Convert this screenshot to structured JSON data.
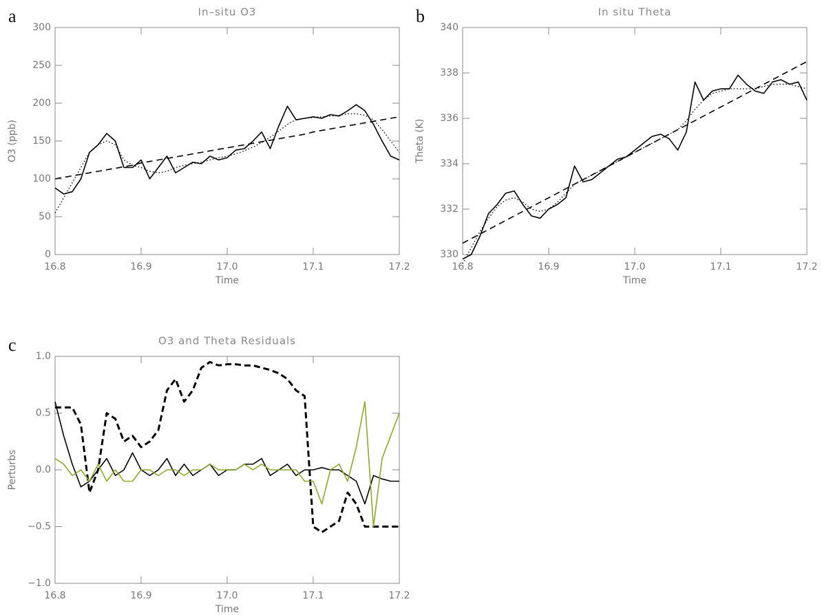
{
  "chart_data": [
    {
      "type": "line",
      "label": "a",
      "title": "In–situ O3",
      "xlabel": "Time",
      "ylabel": "O3 (ppb)",
      "x": [
        16.8,
        16.81,
        16.82,
        16.83,
        16.84,
        16.85,
        16.86,
        16.87,
        16.88,
        16.89,
        16.9,
        16.91,
        16.92,
        16.93,
        16.94,
        16.95,
        16.96,
        16.97,
        16.98,
        16.99,
        17.0,
        17.01,
        17.02,
        17.03,
        17.04,
        17.05,
        17.06,
        17.07,
        17.08,
        17.09,
        17.1,
        17.11,
        17.12,
        17.13,
        17.14,
        17.15,
        17.16,
        17.17,
        17.18,
        17.19,
        17.2
      ],
      "xlim": [
        16.8,
        17.2
      ],
      "xticks": [
        16.8,
        16.9,
        {
          "value": 17,
          "label": "17.0"
        },
        17.1,
        17.2
      ],
      "ylim": [
        0,
        300
      ],
      "yticks": [
        0,
        50,
        100,
        150,
        200,
        250,
        300
      ],
      "series": [
        {
          "color": "#000000",
          "style": "solid",
          "values": [
            88,
            80,
            83,
            100,
            135,
            145,
            160,
            150,
            115,
            115,
            125,
            100,
            115,
            130,
            108,
            115,
            122,
            120,
            130,
            125,
            128,
            138,
            140,
            150,
            162,
            140,
            170,
            196,
            178,
            180,
            182,
            180,
            185,
            183,
            190,
            198,
            190,
            172,
            150,
            130,
            125
          ]
        },
        {
          "color": "#000000",
          "style": "dot",
          "values": [
            55,
            75,
            95,
            115,
            135,
            145,
            150,
            145,
            125,
            118,
            115,
            110,
            108,
            110,
            115,
            118,
            120,
            122,
            125,
            128,
            130,
            133,
            137,
            142,
            148,
            155,
            163,
            172,
            178,
            180,
            181,
            182,
            183,
            184,
            186,
            186,
            184,
            178,
            165,
            150,
            135
          ]
        },
        {
          "color": "#000000",
          "style": "dash",
          "values": [
            100,
            102,
            104,
            106,
            108,
            110,
            112,
            114,
            116,
            118,
            121,
            123,
            125,
            127,
            129,
            131,
            133,
            135,
            137,
            139,
            141,
            143,
            145,
            147,
            149,
            151,
            153,
            155,
            157,
            159,
            162,
            164,
            166,
            168,
            170,
            172,
            174,
            176,
            178,
            180,
            182
          ]
        }
      ]
    },
    {
      "type": "line",
      "label": "b",
      "title": "In situ Theta",
      "xlabel": "Time",
      "ylabel": "Theta (K)",
      "x": [
        16.8,
        16.81,
        16.82,
        16.83,
        16.84,
        16.85,
        16.86,
        16.87,
        16.88,
        16.89,
        16.9,
        16.91,
        16.92,
        16.93,
        16.94,
        16.95,
        16.96,
        16.97,
        16.98,
        16.99,
        17.0,
        17.01,
        17.02,
        17.03,
        17.04,
        17.05,
        17.06,
        17.07,
        17.08,
        17.09,
        17.1,
        17.11,
        17.12,
        17.13,
        17.14,
        17.15,
        17.16,
        17.17,
        17.18,
        17.19,
        17.2
      ],
      "xlim": [
        16.8,
        17.2
      ],
      "xticks": [
        16.8,
        16.9,
        {
          "value": 17,
          "label": "17.0"
        },
        17.1,
        17.2
      ],
      "ylim": [
        330,
        340
      ],
      "yticks": [
        330,
        332,
        334,
        336,
        338,
        340
      ],
      "series": [
        {
          "color": "#000000",
          "style": "solid",
          "values": [
            329.8,
            330.0,
            330.8,
            331.8,
            332.2,
            332.7,
            332.8,
            332.2,
            331.7,
            331.6,
            332.0,
            332.2,
            332.5,
            333.9,
            333.2,
            333.3,
            333.6,
            333.9,
            334.2,
            334.3,
            334.6,
            334.9,
            335.2,
            335.3,
            335.1,
            334.6,
            335.4,
            337.6,
            336.8,
            337.2,
            337.3,
            337.3,
            337.9,
            337.5,
            337.2,
            337.1,
            337.6,
            337.7,
            337.5,
            337.6,
            336.8
          ]
        },
        {
          "color": "#000000",
          "style": "dot",
          "values": [
            329.6,
            330.3,
            331.0,
            331.6,
            332.1,
            332.4,
            332.5,
            332.3,
            332.0,
            331.9,
            332.0,
            332.3,
            332.7,
            333.1,
            333.3,
            333.5,
            333.7,
            333.9,
            334.1,
            334.3,
            334.5,
            334.7,
            334.9,
            335.1,
            335.3,
            335.5,
            335.9,
            336.4,
            336.8,
            337.1,
            337.2,
            337.3,
            337.3,
            337.3,
            337.3,
            337.4,
            337.5,
            337.5,
            337.5,
            337.4,
            337.3
          ]
        },
        {
          "color": "#000000",
          "style": "dash",
          "values": [
            330.5,
            330.7,
            330.9,
            331.1,
            331.3,
            331.5,
            331.7,
            331.9,
            332.1,
            332.3,
            332.5,
            332.7,
            332.9,
            333.1,
            333.3,
            333.5,
            333.7,
            333.9,
            334.1,
            334.3,
            334.5,
            334.7,
            334.9,
            335.1,
            335.3,
            335.5,
            335.7,
            335.9,
            336.1,
            336.3,
            336.5,
            336.7,
            336.9,
            337.1,
            337.3,
            337.5,
            337.7,
            337.9,
            338.1,
            338.3,
            338.5
          ]
        }
      ]
    },
    {
      "type": "line",
      "label": "c",
      "title": "O3 and Theta Residuals",
      "xlabel": "Time",
      "ylabel": "Perturbs",
      "x": [
        16.8,
        16.81,
        16.82,
        16.83,
        16.84,
        16.85,
        16.86,
        16.87,
        16.88,
        16.89,
        16.9,
        16.91,
        16.92,
        16.93,
        16.94,
        16.95,
        16.96,
        16.97,
        16.98,
        16.99,
        17.0,
        17.01,
        17.02,
        17.03,
        17.04,
        17.05,
        17.06,
        17.07,
        17.08,
        17.09,
        17.1,
        17.11,
        17.12,
        17.13,
        17.14,
        17.15,
        17.16,
        17.17,
        17.18,
        17.19,
        17.2
      ],
      "xlim": [
        16.8,
        17.2
      ],
      "xticks": [
        16.8,
        16.9,
        {
          "value": 17,
          "label": "17.0"
        },
        17.1,
        17.2
      ],
      "ylim": [
        -1,
        1
      ],
      "yticks": [
        {
          "value": -1,
          "label": "−1.0"
        },
        {
          "value": -0.5,
          "label": "−0.5"
        },
        {
          "value": 0,
          "label": "0.0"
        },
        0.5,
        {
          "value": 1,
          "label": "1.0"
        }
      ],
      "series": [
        {
          "color": "#000000",
          "style": "solid",
          "values": [
            0.6,
            0.3,
            0.05,
            -0.15,
            -0.1,
            0.0,
            0.1,
            -0.05,
            0.0,
            0.15,
            0.0,
            -0.05,
            0.0,
            0.1,
            -0.05,
            0.05,
            -0.05,
            0.0,
            0.05,
            -0.05,
            0.0,
            0.0,
            0.05,
            0.05,
            0.1,
            -0.05,
            0.0,
            0.05,
            -0.05,
            0.0,
            0.0,
            0.02,
            0.0,
            0.0,
            -0.05,
            -0.1,
            -0.3,
            -0.05,
            -0.08,
            -0.1,
            -0.1
          ]
        },
        {
          "color": "#000000",
          "style": "bold-dash",
          "values": [
            0.55,
            0.55,
            0.55,
            0.4,
            -0.2,
            0.0,
            0.5,
            0.45,
            0.25,
            0.3,
            0.2,
            0.25,
            0.35,
            0.7,
            0.8,
            0.6,
            0.7,
            0.9,
            0.95,
            0.92,
            0.93,
            0.93,
            0.92,
            0.92,
            0.9,
            0.88,
            0.85,
            0.8,
            0.7,
            0.65,
            -0.5,
            -0.55,
            -0.5,
            -0.45,
            -0.2,
            -0.3,
            -0.5,
            -0.5,
            -0.5,
            -0.5,
            -0.5
          ]
        },
        {
          "color": "#8aaa2a",
          "style": "solid",
          "values": [
            0.1,
            0.05,
            -0.05,
            0.0,
            -0.1,
            0.05,
            -0.1,
            0.0,
            -0.1,
            -0.1,
            0.0,
            0.0,
            -0.05,
            0.0,
            0.0,
            -0.05,
            0.0,
            0.0,
            0.05,
            0.0,
            0.0,
            0.0,
            0.05,
            0.0,
            0.05,
            0.0,
            0.0,
            0.0,
            0.0,
            -0.1,
            -0.1,
            -0.3,
            0.0,
            0.05,
            -0.1,
            0.2,
            0.6,
            -0.5,
            0.1,
            0.3,
            0.5
          ]
        }
      ]
    }
  ]
}
